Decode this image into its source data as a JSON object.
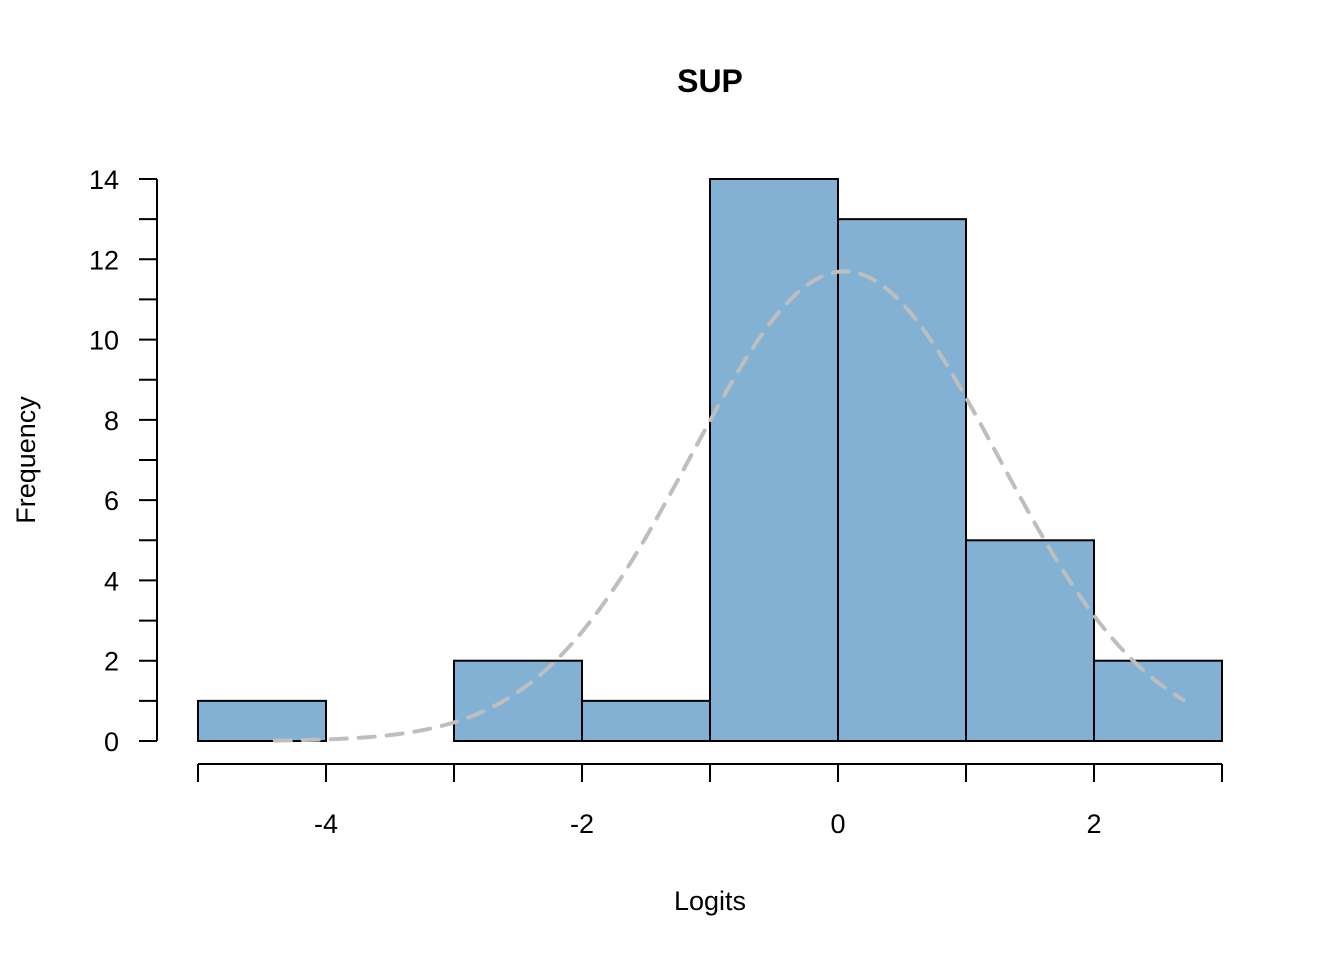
{
  "chart_data": {
    "type": "bar",
    "subtype": "histogram",
    "title": "SUP",
    "xlabel": "Logits",
    "ylabel": "Frequency",
    "bins": [
      {
        "x0": -5,
        "x1": -4,
        "count": 1
      },
      {
        "x0": -4,
        "x1": -3,
        "count": 0
      },
      {
        "x0": -3,
        "x1": -2,
        "count": 2
      },
      {
        "x0": -2,
        "x1": -1,
        "count": 1
      },
      {
        "x0": -1,
        "x1": 0,
        "count": 14
      },
      {
        "x0": 0,
        "x1": 1,
        "count": 13
      },
      {
        "x0": 1,
        "x1": 2,
        "count": 5
      },
      {
        "x0": 2,
        "x1": 3,
        "count": 2
      }
    ],
    "xlim": [
      -5,
      3
    ],
    "ylim": [
      0,
      14
    ],
    "x_tick_marks": [
      -5,
      -4,
      -3,
      -2,
      -1,
      0,
      1,
      2,
      3
    ],
    "x_tick_labels": [
      {
        "value": -4,
        "label": "-4"
      },
      {
        "value": -2,
        "label": "-2"
      },
      {
        "value": 0,
        "label": "0"
      },
      {
        "value": 2,
        "label": "2"
      }
    ],
    "y_tick_marks": [
      0,
      1,
      2,
      3,
      4,
      5,
      6,
      7,
      8,
      9,
      10,
      11,
      12,
      13,
      14
    ],
    "y_tick_labels": [
      {
        "value": 0,
        "label": "0"
      },
      {
        "value": 2,
        "label": "2"
      },
      {
        "value": 4,
        "label": "4"
      },
      {
        "value": 6,
        "label": "6"
      },
      {
        "value": 8,
        "label": "8"
      },
      {
        "value": 10,
        "label": "10"
      },
      {
        "value": 12,
        "label": "12"
      },
      {
        "value": 14,
        "label": "14"
      }
    ],
    "density_curve": {
      "style": "dashed",
      "color": "#bebebe",
      "mean": 0.05,
      "sd": 1.2,
      "peak": 11.7,
      "x_range": [
        -4.4,
        2.7
      ]
    },
    "grid": false,
    "legend": "none",
    "colors": {
      "bar_fill": "#82b1d3",
      "bar_stroke": "#000000",
      "axis": "#000000",
      "background": "#ffffff"
    }
  }
}
